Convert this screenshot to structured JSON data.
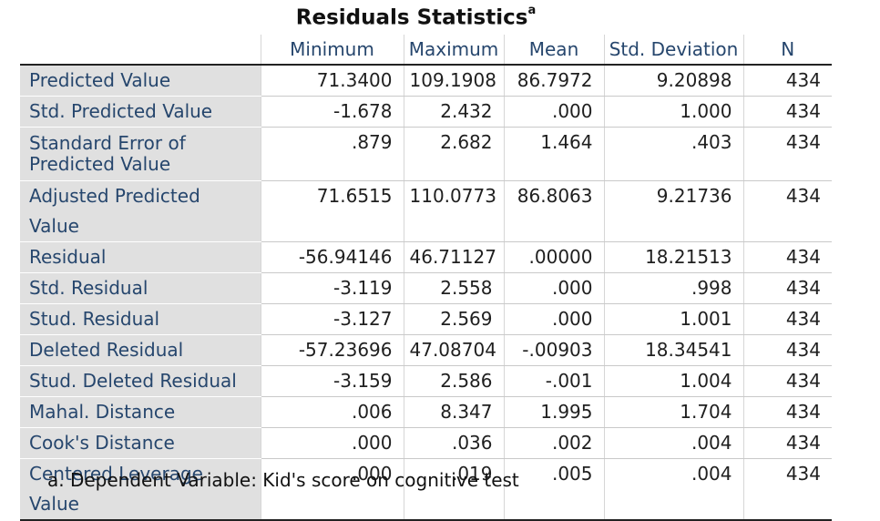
{
  "title": "Residuals Statistics",
  "title_footnote_marker": "a",
  "columns": [
    "Minimum",
    "Maximum",
    "Mean",
    "Std. Deviation",
    "N"
  ],
  "rows": [
    {
      "label": "Predicted Value",
      "values": [
        "71.3400",
        "109.1908",
        "86.7972",
        "9.20898",
        "434"
      ]
    },
    {
      "label": "Std. Predicted Value",
      "values": [
        "-1.678",
        "2.432",
        ".000",
        "1.000",
        "434"
      ]
    },
    {
      "label": "Standard Error of Predicted Value",
      "values": [
        ".879",
        "2.682",
        "1.464",
        ".403",
        "434"
      ]
    },
    {
      "label": "Adjusted Predicted Value",
      "values": [
        "71.6515",
        "110.0773",
        "86.8063",
        "9.21736",
        "434"
      ]
    },
    {
      "label": "Residual",
      "values": [
        "-56.94146",
        "46.71127",
        ".00000",
        "18.21513",
        "434"
      ]
    },
    {
      "label": "Std. Residual",
      "values": [
        "-3.119",
        "2.558",
        ".000",
        ".998",
        "434"
      ]
    },
    {
      "label": "Stud. Residual",
      "values": [
        "-3.127",
        "2.569",
        ".000",
        "1.001",
        "434"
      ]
    },
    {
      "label": "Deleted Residual",
      "values": [
        "-57.23696",
        "47.08704",
        "-.00903",
        "18.34541",
        "434"
      ]
    },
    {
      "label": "Stud. Deleted Residual",
      "values": [
        "-3.159",
        "2.586",
        "-.001",
        "1.004",
        "434"
      ]
    },
    {
      "label": "Mahal. Distance",
      "values": [
        ".006",
        "8.347",
        "1.995",
        "1.704",
        "434"
      ]
    },
    {
      "label": "Cook's Distance",
      "values": [
        ".000",
        ".036",
        ".002",
        ".004",
        "434"
      ]
    },
    {
      "label": "Centered Leverage Value",
      "values": [
        ".000",
        ".019",
        ".005",
        ".004",
        "434"
      ]
    }
  ],
  "footnote": "a. Dependent Variable: Kid's score on cognitive test",
  "colors": {
    "label_text": "#26466d",
    "label_background": "#e0e0e0",
    "rule": "#222222"
  }
}
